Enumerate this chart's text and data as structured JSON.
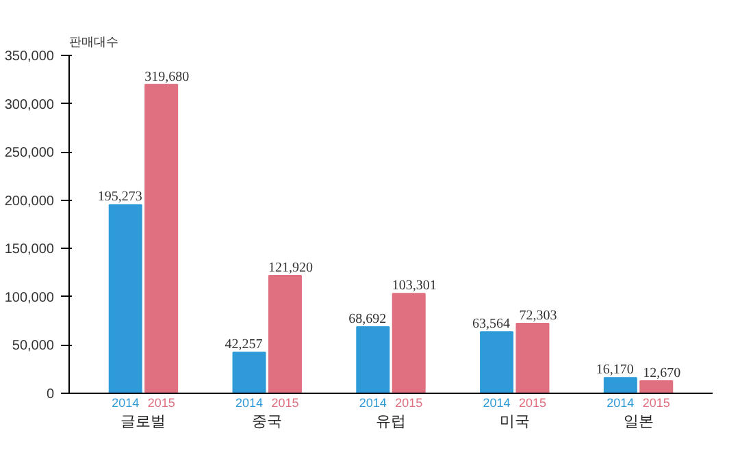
{
  "chart_data": {
    "type": "bar",
    "ylabel": "판매대수",
    "categories": [
      "글로벌",
      "중국",
      "유럽",
      "미국",
      "일본"
    ],
    "series": [
      {
        "name": "2014",
        "color": "#2e9bd8",
        "values": [
          195273,
          42257,
          68692,
          63564,
          16170
        ],
        "value_labels": [
          "195,273",
          "42,257",
          "68,692",
          "63,564",
          "16,170"
        ]
      },
      {
        "name": "2015",
        "color": "#e07080",
        "values": [
          319680,
          121920,
          103301,
          72303,
          12670
        ],
        "value_labels": [
          "319,680",
          "121,920",
          "103,301",
          "72,303",
          "12,670"
        ]
      }
    ],
    "ylim": [
      0,
      350000
    ],
    "yticks": [
      {
        "value": 0,
        "label": "0"
      },
      {
        "value": 50000,
        "label": "50,000"
      },
      {
        "value": 100000,
        "label": "100,000"
      },
      {
        "value": 150000,
        "label": "150,000"
      },
      {
        "value": 200000,
        "label": "200,000"
      },
      {
        "value": 250000,
        "label": "250,000"
      },
      {
        "value": 300000,
        "label": "300,000"
      },
      {
        "value": 350000,
        "label": "350,000"
      }
    ],
    "grid": false,
    "legend": false,
    "data_labels": true
  }
}
